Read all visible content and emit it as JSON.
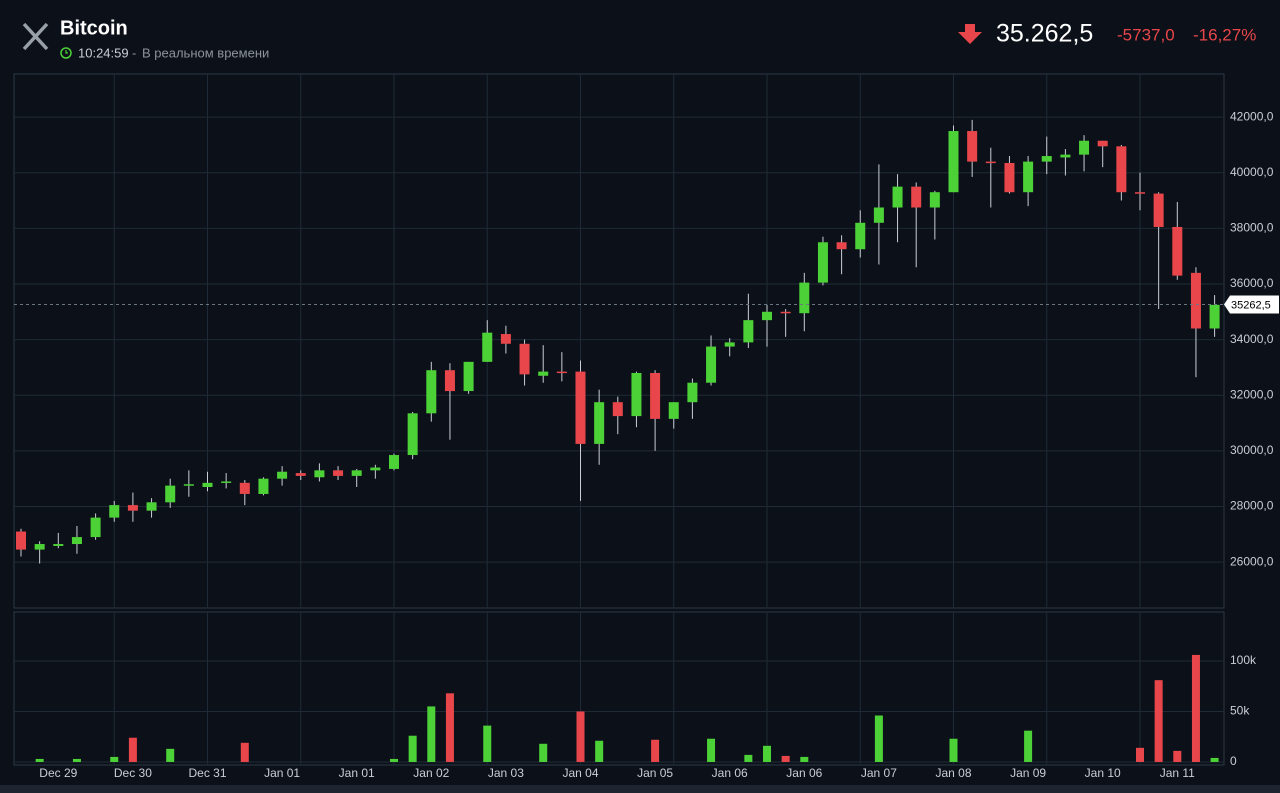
{
  "header": {
    "title": "Bitcoin",
    "time": "10:24:59",
    "status": "В реальном времени",
    "price": "35.262,5",
    "change": "-5737,0",
    "change_pct": "-16,27%"
  },
  "chart_data": [
    {
      "type": "candlestick",
      "up_color": "#4cd137",
      "down_color": "#e8464a",
      "categories": [
        null,
        null,
        "Dec 29",
        null,
        null,
        null,
        "Dec 30",
        null,
        null,
        null,
        "Dec 31",
        null,
        null,
        null,
        "Jan 01",
        null,
        null,
        null,
        "Jan 01",
        null,
        null,
        null,
        "Jan 02",
        null,
        null,
        null,
        "Jan 03",
        null,
        null,
        null,
        "Jan 04",
        null,
        null,
        null,
        "Jan 05",
        null,
        null,
        null,
        "Jan 06",
        null,
        null,
        null,
        "Jan 06",
        null,
        null,
        null,
        "Jan 07",
        null,
        null,
        null,
        "Jan 08",
        null,
        null,
        null,
        "Jan 09",
        null,
        null,
        null,
        "Jan 10",
        null,
        null,
        null,
        "Jan 11",
        null,
        null
      ],
      "open": [
        27100,
        26450,
        26580,
        26650,
        26900,
        27600,
        28050,
        27850,
        28150,
        28750,
        28700,
        28850,
        28850,
        28450,
        29000,
        29200,
        29050,
        29300,
        29100,
        29300,
        29350,
        29850,
        31350,
        32900,
        32150,
        33200,
        34200,
        33850,
        32700,
        32850,
        32850,
        30250,
        31750,
        31250,
        32800,
        31150,
        31750,
        32450,
        33750,
        33900,
        34700,
        35000,
        34950,
        36050,
        37500,
        37250,
        38200,
        38750,
        39500,
        38750,
        39300,
        41500,
        40400,
        40350,
        39300,
        40400,
        40550,
        40650,
        41150,
        40950,
        39300,
        39250,
        38050,
        36400,
        34400
      ],
      "high": [
        27200,
        26750,
        27050,
        27300,
        27750,
        28200,
        28500,
        28300,
        29000,
        29300,
        29250,
        29200,
        28950,
        29050,
        29450,
        29300,
        29550,
        29450,
        29350,
        29500,
        29900,
        31400,
        33200,
        33150,
        33200,
        34700,
        34500,
        34000,
        33800,
        33550,
        33250,
        32200,
        31950,
        32850,
        32900,
        31750,
        32600,
        34150,
        34050,
        35650,
        35250,
        35100,
        36400,
        37700,
        37750,
        38650,
        40300,
        39950,
        39650,
        39350,
        41700,
        41900,
        40900,
        40600,
        40600,
        41300,
        40850,
        41350,
        41150,
        41000,
        40000,
        39300,
        38950,
        36600,
        35600
      ],
      "low": [
        26200,
        25950,
        26500,
        26300,
        26800,
        27450,
        27450,
        27600,
        27950,
        28350,
        28550,
        28650,
        28050,
        28400,
        28750,
        28950,
        28900,
        28950,
        28700,
        29000,
        29300,
        29700,
        31050,
        30400,
        32050,
        33200,
        33500,
        32350,
        32450,
        32500,
        28200,
        29500,
        30600,
        30850,
        30000,
        30800,
        31150,
        32350,
        33400,
        33700,
        33750,
        34100,
        34300,
        35950,
        36350,
        36950,
        36700,
        37500,
        36600,
        37600,
        39300,
        39850,
        38750,
        39250,
        38800,
        39950,
        39900,
        40050,
        40200,
        39000,
        38650,
        35100,
        36150,
        32650,
        34100
      ],
      "close": [
        26450,
        26650,
        26650,
        26900,
        27600,
        28050,
        27850,
        28150,
        28750,
        28800,
        28850,
        28900,
        28450,
        29000,
        29250,
        29100,
        29300,
        29100,
        29300,
        29400,
        29850,
        31350,
        32900,
        32150,
        33200,
        34250,
        33850,
        32750,
        32850,
        32800,
        30250,
        31750,
        31250,
        32800,
        31150,
        31750,
        32450,
        33750,
        33900,
        34700,
        35000,
        34950,
        36050,
        37500,
        37250,
        38200,
        38750,
        39500,
        38750,
        39300,
        41500,
        40400,
        40350,
        39300,
        40400,
        40600,
        40650,
        41150,
        40950,
        39300,
        39250,
        38050,
        36300,
        34400,
        35250
      ],
      "ylim": [
        24350,
        43550
      ],
      "yticks": [
        {
          "value": 26000,
          "label": "26000,0"
        },
        {
          "value": 28000,
          "label": "28000,0"
        },
        {
          "value": 30000,
          "label": "30000,0"
        },
        {
          "value": 32000,
          "label": "32000,0"
        },
        {
          "value": 34000,
          "label": "34000,0"
        },
        {
          "value": 36000,
          "label": "36000,0"
        },
        {
          "value": 38000,
          "label": "38000,0"
        },
        {
          "value": 40000,
          "label": "40000,0"
        },
        {
          "value": 42000,
          "label": "42000,0"
        }
      ],
      "last_price": {
        "value": 35262.5,
        "label": "35262,5"
      },
      "grid": true
    },
    {
      "type": "bar",
      "values": [
        0,
        3000,
        0,
        3000,
        0,
        5000,
        24000,
        0,
        13000,
        0,
        0,
        0,
        19000,
        0,
        0,
        0,
        0,
        0,
        0,
        0,
        3000,
        26000,
        55000,
        68000,
        0,
        36000,
        0,
        0,
        18000,
        0,
        50000,
        21000,
        0,
        0,
        22000,
        0,
        0,
        23000,
        0,
        7000,
        16000,
        6000,
        5000,
        0,
        0,
        0,
        46000,
        0,
        0,
        0,
        23000,
        0,
        0,
        0,
        31000,
        0,
        0,
        0,
        0,
        0,
        14000,
        81000,
        11000,
        106000,
        4000
      ],
      "ylim": [
        -3000,
        148500
      ],
      "yticks": [
        0,
        {
          "value": 50000,
          "label": "50k"
        },
        {
          "value": 100000,
          "label": "100k"
        }
      ],
      "grid": true
    }
  ]
}
